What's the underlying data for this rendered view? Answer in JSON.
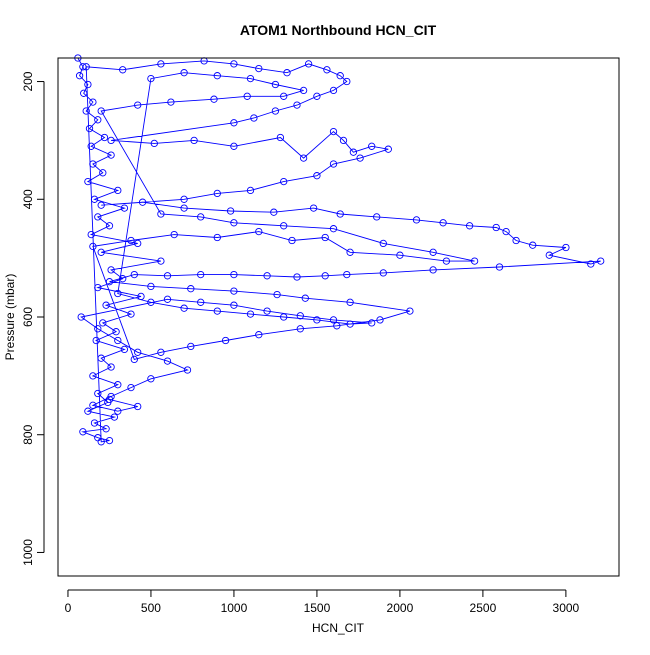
{
  "chart_data": {
    "type": "scatter",
    "title": "ATOM1 Northbound HCN_CIT",
    "xlabel": "HCN_CIT",
    "ylabel": "Pressure (mbar)",
    "xlim": [
      -60,
      3320
    ],
    "ylim": [
      1040,
      160
    ],
    "y_reversed": true,
    "xticks": [
      0,
      500,
      1000,
      1500,
      2000,
      2500,
      3000
    ],
    "yticks": [
      200,
      400,
      600,
      800,
      1000
    ],
    "grid": false,
    "legend": "none",
    "marker": "open-circle",
    "connected": true,
    "color": "#0000ff",
    "series": [
      {
        "points": [
          [
            60,
            160
          ],
          [
            90,
            175
          ],
          [
            70,
            190
          ],
          [
            120,
            205
          ],
          [
            95,
            220
          ],
          [
            150,
            235
          ],
          [
            110,
            250
          ],
          [
            180,
            265
          ],
          [
            130,
            280
          ],
          [
            220,
            295
          ],
          [
            140,
            310
          ],
          [
            260,
            325
          ],
          [
            150,
            340
          ],
          [
            210,
            355
          ],
          [
            120,
            370
          ],
          [
            300,
            385
          ],
          [
            160,
            400
          ],
          [
            340,
            415
          ],
          [
            180,
            430
          ],
          [
            250,
            445
          ],
          [
            140,
            460
          ],
          [
            420,
            475
          ],
          [
            200,
            490
          ],
          [
            560,
            505
          ],
          [
            260,
            520
          ],
          [
            330,
            535
          ],
          [
            180,
            550
          ],
          [
            440,
            565
          ],
          [
            230,
            580
          ],
          [
            380,
            595
          ],
          [
            210,
            610
          ],
          [
            290,
            625
          ],
          [
            170,
            640
          ],
          [
            340,
            655
          ],
          [
            200,
            670
          ],
          [
            260,
            685
          ],
          [
            150,
            700
          ],
          [
            300,
            715
          ],
          [
            180,
            730
          ],
          [
            240,
            745
          ],
          [
            120,
            760
          ],
          [
            280,
            770
          ],
          [
            160,
            780
          ],
          [
            230,
            790
          ],
          [
            90,
            795
          ],
          [
            180,
            805
          ],
          [
            250,
            810
          ],
          [
            200,
            812
          ],
          [
            110,
            175
          ],
          [
            330,
            180
          ],
          [
            560,
            170
          ],
          [
            820,
            165
          ],
          [
            1000,
            170
          ],
          [
            1150,
            178
          ],
          [
            1320,
            185
          ],
          [
            1450,
            170
          ],
          [
            1560,
            180
          ],
          [
            1640,
            190
          ],
          [
            1680,
            200
          ],
          [
            1600,
            215
          ],
          [
            1500,
            225
          ],
          [
            1380,
            240
          ],
          [
            1250,
            250
          ],
          [
            1120,
            262
          ],
          [
            1000,
            270
          ],
          [
            260,
            300
          ],
          [
            520,
            305
          ],
          [
            760,
            300
          ],
          [
            1000,
            310
          ],
          [
            1280,
            295
          ],
          [
            1420,
            330
          ],
          [
            1600,
            285
          ],
          [
            1660,
            300
          ],
          [
            1720,
            320
          ],
          [
            1830,
            310
          ],
          [
            1930,
            315
          ],
          [
            1760,
            330
          ],
          [
            1600,
            340
          ],
          [
            1500,
            360
          ],
          [
            1300,
            370
          ],
          [
            1100,
            385
          ],
          [
            900,
            390
          ],
          [
            700,
            400
          ],
          [
            200,
            410
          ],
          [
            450,
            405
          ],
          [
            700,
            415
          ],
          [
            980,
            420
          ],
          [
            1240,
            422
          ],
          [
            1480,
            415
          ],
          [
            1640,
            425
          ],
          [
            1860,
            430
          ],
          [
            2100,
            435
          ],
          [
            2260,
            440
          ],
          [
            2420,
            445
          ],
          [
            2580,
            448
          ],
          [
            2640,
            455
          ],
          [
            2700,
            470
          ],
          [
            2800,
            478
          ],
          [
            3000,
            482
          ],
          [
            2900,
            495
          ],
          [
            3150,
            510
          ],
          [
            3210,
            505
          ],
          [
            2600,
            515
          ],
          [
            2200,
            520
          ],
          [
            1900,
            525
          ],
          [
            1680,
            528
          ],
          [
            1550,
            530
          ],
          [
            1380,
            532
          ],
          [
            1200,
            530
          ],
          [
            1000,
            528
          ],
          [
            800,
            528
          ],
          [
            600,
            530
          ],
          [
            400,
            528
          ],
          [
            250,
            540
          ],
          [
            500,
            548
          ],
          [
            740,
            552
          ],
          [
            1000,
            556
          ],
          [
            1260,
            562
          ],
          [
            1430,
            568
          ],
          [
            1700,
            575
          ],
          [
            2060,
            590
          ],
          [
            1880,
            605
          ],
          [
            1620,
            615
          ],
          [
            1400,
            620
          ],
          [
            1150,
            630
          ],
          [
            950,
            640
          ],
          [
            740,
            650
          ],
          [
            560,
            660
          ],
          [
            400,
            672
          ],
          [
            150,
            480
          ],
          [
            380,
            470
          ],
          [
            640,
            460
          ],
          [
            900,
            465
          ],
          [
            1150,
            455
          ],
          [
            1350,
            470
          ],
          [
            1550,
            465
          ],
          [
            1700,
            490
          ],
          [
            2000,
            495
          ],
          [
            2280,
            505
          ],
          [
            2450,
            505
          ],
          [
            2200,
            490
          ],
          [
            1900,
            475
          ],
          [
            1600,
            450
          ],
          [
            1300,
            445
          ],
          [
            1000,
            440
          ],
          [
            800,
            430
          ],
          [
            560,
            425
          ],
          [
            200,
            250
          ],
          [
            420,
            240
          ],
          [
            620,
            235
          ],
          [
            880,
            230
          ],
          [
            1080,
            225
          ],
          [
            1300,
            225
          ],
          [
            1420,
            215
          ],
          [
            1250,
            205
          ],
          [
            1100,
            195
          ],
          [
            900,
            190
          ],
          [
            700,
            185
          ],
          [
            500,
            195
          ],
          [
            300,
            560
          ],
          [
            500,
            575
          ],
          [
            700,
            585
          ],
          [
            900,
            590
          ],
          [
            1100,
            595
          ],
          [
            1300,
            600
          ],
          [
            1500,
            605
          ],
          [
            1700,
            612
          ],
          [
            1830,
            610
          ],
          [
            1600,
            605
          ],
          [
            1400,
            598
          ],
          [
            1200,
            590
          ],
          [
            1000,
            580
          ],
          [
            800,
            575
          ],
          [
            600,
            570
          ],
          [
            80,
            600
          ],
          [
            180,
            620
          ],
          [
            300,
            640
          ],
          [
            420,
            660
          ],
          [
            600,
            675
          ],
          [
            720,
            690
          ],
          [
            500,
            705
          ],
          [
            380,
            720
          ],
          [
            260,
            735
          ],
          [
            150,
            750
          ],
          [
            300,
            760
          ],
          [
            420,
            752
          ],
          [
            250,
            740
          ]
        ]
      }
    ]
  }
}
